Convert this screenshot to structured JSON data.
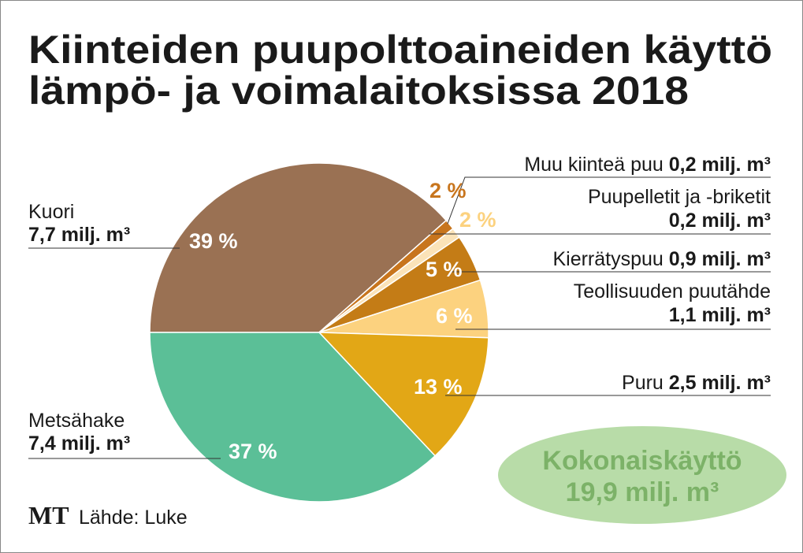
{
  "chart_data": {
    "type": "pie",
    "title": "Kiinteiden puupolttoaineiden käyttö lämpö- ja voimalaitoksissa 2018",
    "title_lines": [
      "Kiinteiden puupolttoaineiden käyttö",
      "lämpö- ja voimalaitoksissa 2018"
    ],
    "unit": "milj. m³",
    "slices": [
      {
        "name": "Kuori",
        "value": 7.7,
        "value_label": "7,7 milj. m³",
        "percent_label": "39 %",
        "color": "#9a7153",
        "label_color": "#ffffff"
      },
      {
        "name": "Muu kiinteä puu",
        "value": 0.2,
        "value_label": "0,2 milj. m³",
        "percent_label": "2 %",
        "color": "#c8751d",
        "label_color": "#c8751d"
      },
      {
        "name": "Puupelletit ja -briketit",
        "value": 0.2,
        "value_label": "0,2 milj. m³",
        "percent_label": "2 %",
        "color": "#fbe3b8",
        "label_color": "#fcd27f"
      },
      {
        "name": "Kierrätyspuu",
        "value": 0.9,
        "value_label": "0,9 milj. m³",
        "percent_label": "5 %",
        "color": "#c47c16",
        "label_color": "#ffffff"
      },
      {
        "name": "Teollisuuden puutähde",
        "value": 1.1,
        "value_label": "1,1 milj. m³",
        "percent_label": "6 %",
        "color": "#fcd27f",
        "label_color": "#ffffff"
      },
      {
        "name": "Puru",
        "value": 2.5,
        "value_label": "2,5 milj. m³",
        "percent_label": "13 %",
        "color": "#e2a716",
        "label_color": "#ffffff"
      },
      {
        "name": "Metsähake",
        "value": 7.4,
        "value_label": "7,4 milj. m³",
        "percent_label": "37 %",
        "color": "#5bbf97",
        "label_color": "#ffffff"
      }
    ],
    "total": {
      "label": "Kokonaiskäyttö",
      "value_label": "19,9 milj. m³",
      "color": "#b8dca8"
    }
  },
  "footer": {
    "logo": "MT",
    "source": "Lähde: Luke"
  }
}
